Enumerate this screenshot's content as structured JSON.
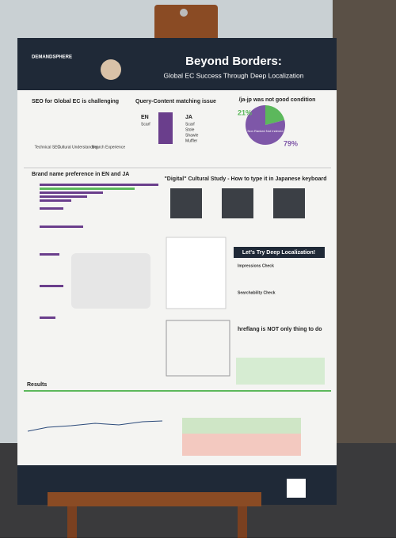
{
  "header": {
    "brand": "DEMANDSPHERE",
    "title": "Beyond Borders:",
    "subtitle": "Global EC Success Through Deep Localization"
  },
  "sections": {
    "challenge": {
      "title": "SEO for Global EC is challenging",
      "items": [
        "Technical SEO",
        "Cultural Understanding",
        "Search Experience"
      ]
    },
    "query": {
      "title": "Query-Content matching issue",
      "en": "EN",
      "en_word": "Scarf",
      "ja": "JA",
      "ja_words": [
        "Scarf",
        "Stole",
        "Shawle",
        "Muffler"
      ]
    },
    "condition": {
      "title": "/ja-jp was not good condition",
      "pie": [
        {
          "value": 21,
          "label": "21%",
          "color": "#5cb85c"
        },
        {
          "value": 79,
          "label": "79%",
          "color": "#7e57a8"
        }
      ],
      "legend": "Non Ranked Not Indexed"
    },
    "brand": {
      "title": "Brand name preference in EN and JA"
    },
    "digital": {
      "title": "\"Digital\" Cultural Study - How to type it in Japanese keyboard"
    },
    "localization": {
      "title": "Let's Try Deep Localization!",
      "checks": [
        "Impressions Check",
        "Searchability Check"
      ]
    },
    "hreflang": {
      "title": "hreflang is NOT only thing to do"
    },
    "results": {
      "title": "Results"
    }
  }
}
